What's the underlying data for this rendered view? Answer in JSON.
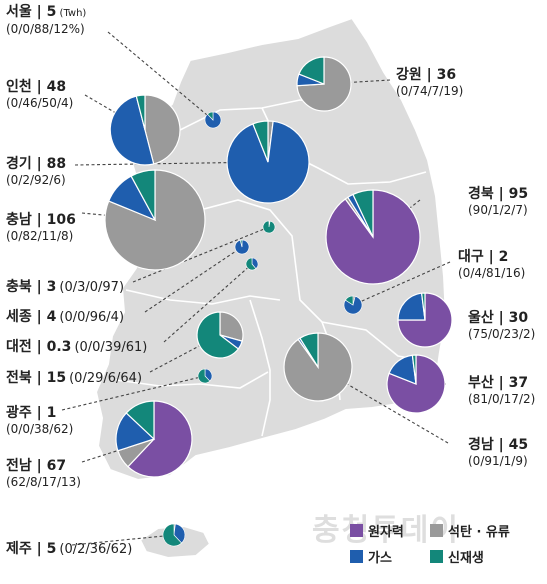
{
  "colors": {
    "nuclear": "#7a4fa3",
    "coal": "#9a9a9a",
    "gas": "#1f5eae",
    "renewable": "#13877a",
    "map_land": "#dcdcdc",
    "map_border": "#ffffff"
  },
  "legend": [
    {
      "key": "nuclear",
      "label": "원자력"
    },
    {
      "key": "coal",
      "label": "석탄 · 유류"
    },
    {
      "key": "gas",
      "label": "가스"
    },
    {
      "key": "renewable",
      "label": "신재생"
    }
  ],
  "watermark": "충청투데이",
  "chart_data": {
    "type": "pie",
    "unit": "(Twh)",
    "series_order": [
      "nuclear",
      "coal",
      "gas",
      "renewable"
    ],
    "regions": [
      {
        "id": "seoul",
        "name": "서울 | 5",
        "pct_text": "(0/0/88/12%)",
        "total": 5,
        "shares": [
          0,
          0,
          88,
          12
        ]
      },
      {
        "id": "incheon",
        "name": "인천 | 48",
        "pct_text": "(0/46/50/4)",
        "total": 48,
        "shares": [
          0,
          46,
          50,
          4
        ]
      },
      {
        "id": "gyeonggi",
        "name": "경기 | 88",
        "pct_text": "(0/2/92/6)",
        "total": 88,
        "shares": [
          0,
          2,
          92,
          6
        ]
      },
      {
        "id": "chungnam",
        "name": "충남 | 106",
        "pct_text": "(0/82/11/8)",
        "total": 106,
        "shares": [
          0,
          82,
          11,
          8
        ]
      },
      {
        "id": "chungbuk",
        "name": "충북 | 3",
        "pct_text": "(0/3/0/97)",
        "total": 3,
        "shares": [
          0,
          3,
          0,
          97
        ]
      },
      {
        "id": "sejong",
        "name": "세종 | 4",
        "pct_text": "(0/0/96/4)",
        "total": 4,
        "shares": [
          0,
          0,
          96,
          4
        ]
      },
      {
        "id": "daejeon",
        "name": "대전 | 0.3",
        "pct_text": "(0/0/39/61)",
        "total": 0.3,
        "shares": [
          0,
          0,
          39,
          61
        ]
      },
      {
        "id": "jeonbuk",
        "name": "전북 | 15",
        "pct_text": "(0/29/6/64)",
        "total": 15,
        "shares": [
          0,
          29,
          6,
          64
        ]
      },
      {
        "id": "gwangju",
        "name": "광주 | 1",
        "pct_text": "(0/0/38/62)",
        "total": 1,
        "shares": [
          0,
          0,
          38,
          62
        ]
      },
      {
        "id": "jeonnam",
        "name": "전남 | 67",
        "pct_text": "(62/8/17/13)",
        "total": 67,
        "shares": [
          62,
          8,
          17,
          13
        ]
      },
      {
        "id": "jeju",
        "name": "제주 | 5",
        "pct_text": "(0/2/36/62)",
        "total": 5,
        "shares": [
          0,
          2,
          36,
          62
        ]
      },
      {
        "id": "gangwon",
        "name": "강원 | 36",
        "pct_text": "(0/74/7/19)",
        "total": 36,
        "shares": [
          0,
          74,
          7,
          19
        ]
      },
      {
        "id": "gyeongbuk",
        "name": "경북 | 95",
        "pct_text": "(90/1/2/7)",
        "total": 95,
        "shares": [
          90,
          1,
          2,
          7
        ]
      },
      {
        "id": "daegu",
        "name": "대구 | 2",
        "pct_text": "(0/4/81/16)",
        "total": 2,
        "shares": [
          0,
          4,
          81,
          16
        ]
      },
      {
        "id": "ulsan",
        "name": "울산 | 30",
        "pct_text": "(75/0/23/2)",
        "total": 30,
        "shares": [
          75,
          0,
          23,
          2
        ]
      },
      {
        "id": "busan",
        "name": "부산 | 37",
        "pct_text": "(81/0/17/2)",
        "total": 37,
        "shares": [
          81,
          0,
          17,
          2
        ]
      },
      {
        "id": "gyeongnam",
        "name": "경남 | 45",
        "pct_text": "(0/91/1/9)",
        "total": 45,
        "shares": [
          0,
          91,
          1,
          9
        ]
      }
    ]
  }
}
